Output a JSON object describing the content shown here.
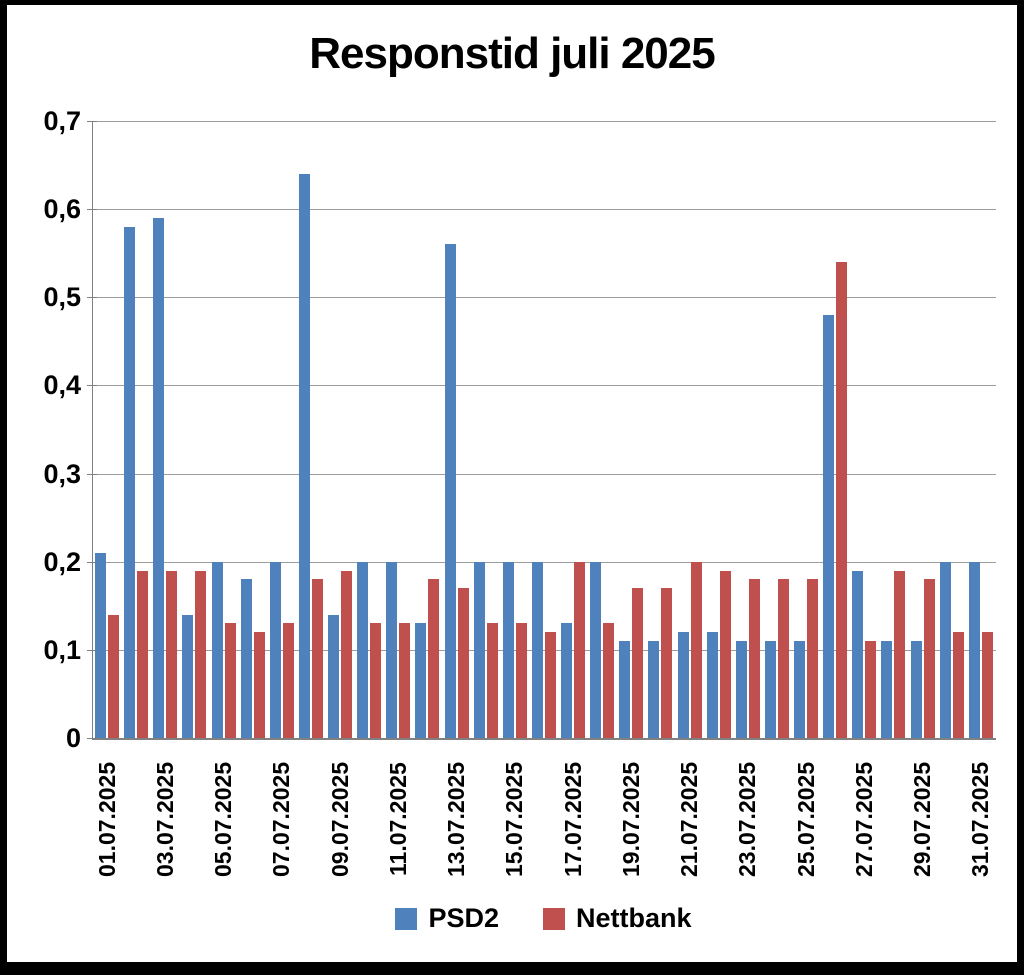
{
  "title": "Responstid juli 2025",
  "legend": {
    "items": [
      {
        "label": "PSD2",
        "color": "#4F81BD"
      },
      {
        "label": "Nettbank",
        "color": "#C0504D"
      }
    ]
  },
  "chart_data": {
    "type": "bar",
    "title": "Responstid juli 2025",
    "xlabel": "",
    "ylabel": "",
    "ylim": [
      0,
      0.7
    ],
    "grid": true,
    "legend_position": "bottom",
    "decimal_separator": ",",
    "y_tick_labels": [
      "0,7",
      "0,6",
      "0,5",
      "0,4",
      "0,3",
      "0,2",
      "0,1",
      "0"
    ],
    "y_tick_values": [
      0.7,
      0.6,
      0.5,
      0.4,
      0.3,
      0.2,
      0.1,
      0
    ],
    "categories": [
      "01.07.2025",
      "02.07.2025",
      "03.07.2025",
      "04.07.2025",
      "05.07.2025",
      "06.07.2025",
      "07.07.2025",
      "08.07.2025",
      "09.07.2025",
      "10.07.2025",
      "11.07.2025",
      "12.07.2025",
      "13.07.2025",
      "14.07.2025",
      "15.07.2025",
      "16.07.2025",
      "17.07.2025",
      "18.07.2025",
      "19.07.2025",
      "20.07.2025",
      "21.07.2025",
      "22.07.2025",
      "23.07.2025",
      "24.07.2025",
      "25.07.2025",
      "26.07.2025",
      "27.07.2025",
      "28.07.2025",
      "29.07.2025",
      "30.07.2025",
      "31.07.2025"
    ],
    "x_tick_labels_shown": [
      "01.07.2025",
      "03.07.2025",
      "05.07.2025",
      "07.07.2025",
      "09.07.2025",
      "11.07.2025",
      "13.07.2025",
      "15.07.2025",
      "17.07.2025",
      "19.07.2025",
      "21.07.2025",
      "23.07.2025",
      "25.07.2025",
      "27.07.2025",
      "29.07.2025",
      "31.07.2025"
    ],
    "series": [
      {
        "name": "PSD2",
        "color": "#4F81BD",
        "values": [
          0.21,
          0.58,
          0.59,
          0.14,
          0.2,
          0.18,
          0.2,
          0.64,
          0.14,
          0.2,
          0.2,
          0.13,
          0.56,
          0.2,
          0.2,
          0.2,
          0.13,
          0.2,
          0.11,
          0.11,
          0.12,
          0.12,
          0.11,
          0.11,
          0.11,
          0.48,
          0.19,
          0.11,
          0.11,
          0.2,
          0.2
        ]
      },
      {
        "name": "Nettbank",
        "color": "#C0504D",
        "values": [
          0.14,
          0.19,
          0.19,
          0.19,
          0.13,
          0.12,
          0.13,
          0.18,
          0.19,
          0.13,
          0.13,
          0.18,
          0.17,
          0.13,
          0.13,
          0.12,
          0.2,
          0.13,
          0.17,
          0.17,
          0.2,
          0.19,
          0.18,
          0.18,
          0.18,
          0.54,
          0.11,
          0.19,
          0.18,
          0.12,
          0.12
        ]
      }
    ]
  }
}
